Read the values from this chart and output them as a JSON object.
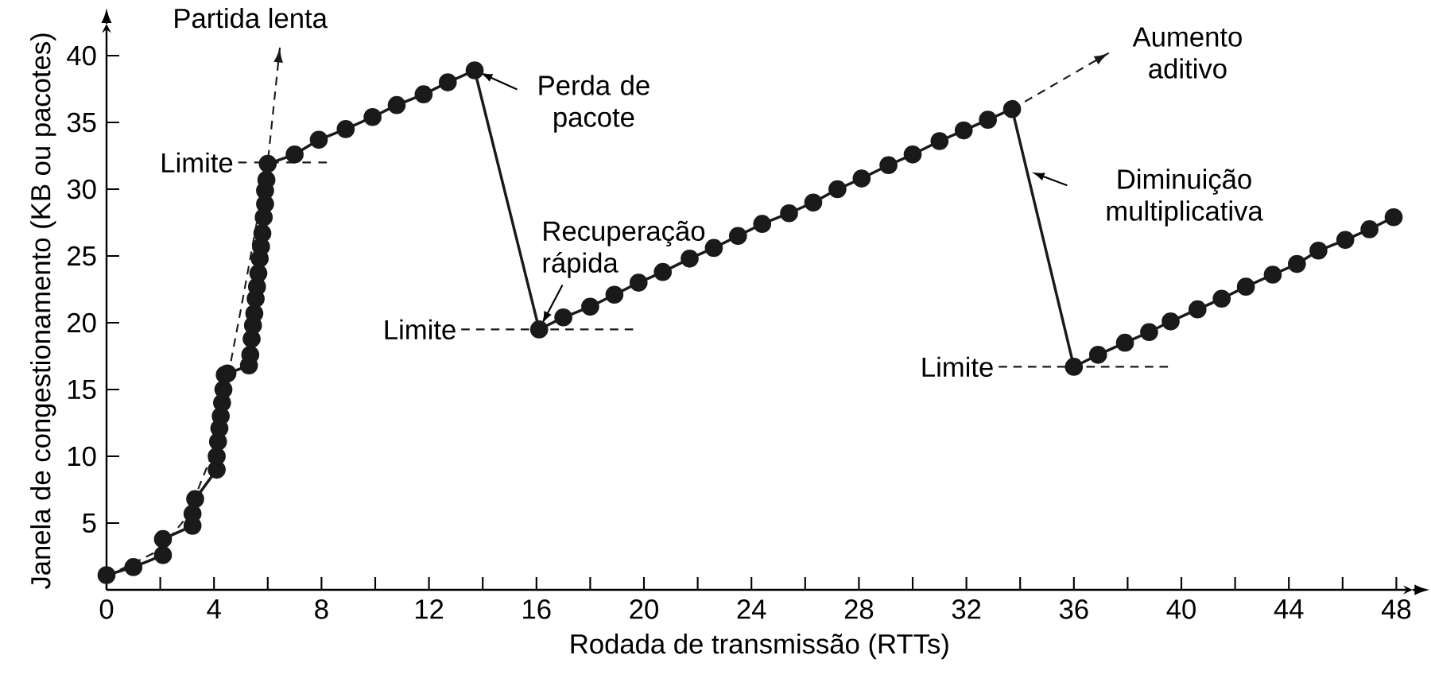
{
  "chart_data": {
    "type": "line",
    "xlabel": "Rodada de transmissão (RTTs)",
    "ylabel": "Janela de congestionamento (KB ou pacotes)",
    "xlim": [
      0,
      48.6
    ],
    "ylim": [
      0,
      41.8
    ],
    "xticks": [
      0,
      {
        "value": 2,
        "label": null
      },
      4,
      {
        "value": 6,
        "label": null
      },
      8,
      {
        "value": 10,
        "label": null
      },
      12,
      {
        "value": 14,
        "label": null
      },
      16,
      {
        "value": 18,
        "label": null
      },
      20,
      {
        "value": 22,
        "label": null
      },
      24,
      {
        "value": 26,
        "label": null
      },
      28,
      {
        "value": 30,
        "label": null
      },
      32,
      {
        "value": 34,
        "label": null
      },
      36,
      {
        "value": 38,
        "label": null
      },
      40,
      {
        "value": 42,
        "label": null
      },
      44,
      {
        "value": 46,
        "label": null
      },
      48
    ],
    "yticks": [
      5,
      10,
      15,
      20,
      25,
      30,
      35,
      40
    ],
    "grid": false,
    "legend": false,
    "series": [
      {
        "color": "#1a1a1a",
        "marker": "circle",
        "line_style": "solid",
        "x": [
          0,
          1.0,
          2.1,
          2.1,
          3.2,
          3.2,
          3.3,
          4.1,
          4.1,
          4.15,
          4.2,
          4.25,
          4.3,
          4.35,
          4.4,
          4.5,
          5.3,
          5.35,
          5.4,
          5.45,
          5.5,
          5.55,
          5.6,
          5.65,
          5.7,
          5.75,
          5.8,
          5.85,
          5.9,
          5.9,
          5.95,
          6.0,
          7.0,
          7.9,
          8.9,
          9.9,
          10.8,
          11.8,
          12.7,
          13.7,
          16.1,
          17.0,
          18.0,
          18.9,
          19.8,
          20.7,
          21.7,
          22.6,
          23.5,
          24.4,
          25.4,
          26.3,
          27.2,
          28.1,
          29.1,
          30.0,
          31.0,
          31.9,
          32.8,
          33.7,
          36.0,
          36.9,
          37.9,
          38.8,
          39.6,
          40.6,
          41.5,
          42.4,
          43.4,
          44.3,
          45.1,
          46.1,
          47.0,
          47.9
        ],
        "values": [
          1.1,
          1.7,
          2.6,
          3.8,
          4.8,
          5.7,
          6.8,
          9.0,
          10.0,
          11.1,
          12.1,
          13.0,
          14.0,
          15.0,
          16.1,
          16.2,
          16.8,
          17.6,
          18.8,
          19.8,
          20.7,
          21.8,
          22.7,
          23.7,
          24.8,
          25.7,
          26.7,
          27.9,
          28.9,
          29.9,
          30.7,
          31.9,
          32.6,
          33.7,
          34.5,
          35.4,
          36.3,
          37.1,
          38.0,
          38.9,
          19.5,
          20.4,
          21.2,
          22.1,
          23.0,
          23.8,
          24.8,
          25.6,
          26.5,
          27.4,
          28.2,
          29.0,
          30.0,
          30.8,
          31.8,
          32.6,
          33.6,
          34.4,
          35.2,
          36.0,
          16.7,
          17.6,
          18.5,
          19.3,
          20.1,
          21.0,
          21.8,
          22.7,
          23.6,
          24.4,
          25.4,
          26.2,
          27.0,
          27.9
        ]
      },
      {
        "color": "#1a1a1a",
        "marker": "none",
        "line_style": "dashed",
        "x": [
          0,
          2,
          3,
          4,
          5,
          6,
          6.45
        ],
        "values": [
          1,
          3,
          5.5,
          10.5,
          21,
          32,
          40.6
        ]
      },
      {
        "color": "#1a1a1a",
        "marker": "none",
        "line_style": "dashed",
        "x": [
          33.7,
          37.3
        ],
        "values": [
          36.0,
          40.2
        ]
      },
      {
        "color": "#1a1a1a",
        "marker": "none",
        "line_style": "dashed",
        "x": [
          4.9,
          8.2
        ],
        "values": [
          32,
          32
        ]
      },
      {
        "color": "#1a1a1a",
        "marker": "none",
        "line_style": "dashed",
        "x": [
          13.2,
          19.6
        ],
        "values": [
          19.5,
          19.5
        ]
      },
      {
        "color": "#1a1a1a",
        "marker": "none",
        "line_style": "dashed",
        "x": [
          33.2,
          39.5
        ],
        "values": [
          16.7,
          16.7
        ]
      }
    ],
    "annotations": [
      {
        "text": "Partida lenta",
        "x": 6.45,
        "y": 40.6
      },
      {
        "text": "Limite",
        "x": 4.9,
        "y": 32
      },
      {
        "text": "Perda de pacote",
        "x": 13.7,
        "y": 38.9
      },
      {
        "text": "Recuperação rápida",
        "x": 16.1,
        "y": 19.5
      },
      {
        "text": "Limite",
        "x": 13.2,
        "y": 19.5
      },
      {
        "text": "Aumento aditivo",
        "x": 37.3,
        "y": 40.2
      },
      {
        "text": "Diminuição multiplicativa",
        "x": 34.25,
        "y": 31.4
      },
      {
        "text": "Limite",
        "x": 33.2,
        "y": 16.7
      }
    ]
  }
}
